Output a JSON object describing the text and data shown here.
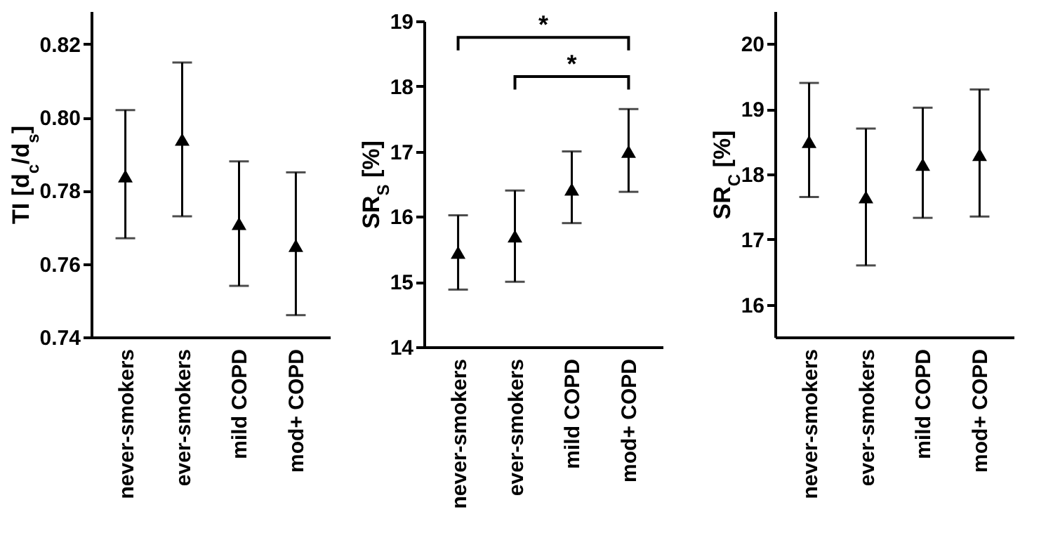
{
  "chart_data": [
    {
      "type": "scatter",
      "ylabel": "TI [d$_{c}$/d$_{s}$]",
      "categories": [
        "never-smokers",
        "ever-smokers",
        "mild COPD",
        "mod+ COPD"
      ],
      "values": [
        0.784,
        0.794,
        0.771,
        0.765
      ],
      "errors": [
        [
          0.767,
          0.802
        ],
        [
          0.773,
          0.815
        ],
        [
          0.754,
          0.788
        ],
        [
          0.746,
          0.785
        ]
      ],
      "color": "#000000",
      "marker": "triangle",
      "ylim": [
        0.74,
        0.829
      ],
      "yticks": [
        0.74,
        0.76,
        0.78,
        {
          "value": 0.8,
          "label": "0.80"
        },
        0.82
      ]
    },
    {
      "type": "scatter",
      "ylabel": "SR$_{S}$ [%]",
      "categories": [
        "never-smokers",
        "ever-smokers",
        "mild COPD",
        "mod+ COPD"
      ],
      "values": [
        15.45,
        15.7,
        16.42,
        17.0
      ],
      "errors": [
        [
          14.88,
          16.02
        ],
        [
          15.0,
          16.4
        ],
        [
          15.9,
          17.0
        ],
        [
          16.38,
          17.65
        ]
      ],
      "color": "#000000",
      "marker": "triangle",
      "ylim": [
        14,
        19
      ],
      "yticks": [
        14,
        15,
        16,
        17,
        18,
        19
      ],
      "annotations": [
        "*",
        "*"
      ]
    },
    {
      "type": "scatter",
      "ylabel": "SR$_{C}$ [%]",
      "categories": [
        "never-smokers",
        "ever-smokers",
        "mild COPD",
        "mod+ COPD"
      ],
      "values": [
        18.5,
        17.65,
        18.15,
        18.3
      ],
      "errors": [
        [
          17.65,
          19.4
        ],
        [
          16.6,
          18.7
        ],
        [
          17.33,
          19.02
        ],
        [
          17.35,
          19.3
        ]
      ],
      "color": "#000000",
      "marker": "triangle",
      "ylim": [
        15.5,
        20.5
      ],
      "yticks": [
        16,
        17,
        18,
        19,
        20
      ]
    }
  ]
}
